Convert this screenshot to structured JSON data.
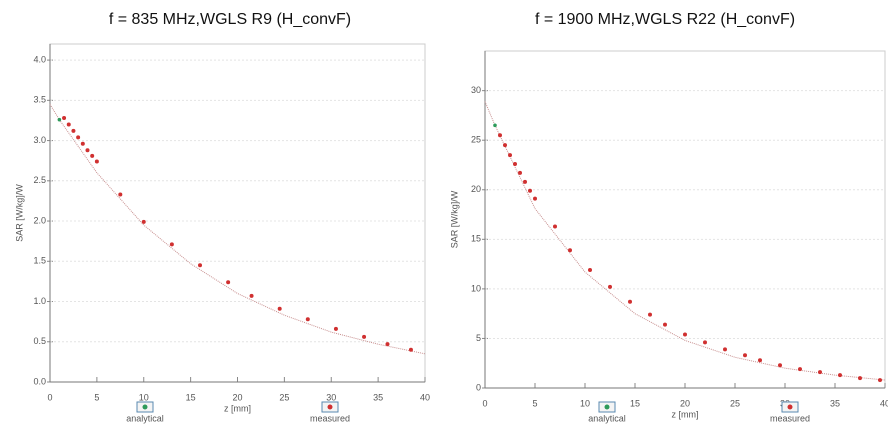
{
  "chart_data": [
    {
      "type": "line",
      "title": "f = 835 MHz,WGLS R9 (H_convF)",
      "x_label": "z [mm]",
      "y_label": "SAR [W/kg]/W",
      "xlim": [
        0,
        40
      ],
      "xticks": [
        0,
        5,
        10,
        15,
        20,
        25,
        30,
        35,
        40
      ],
      "ylim": [
        0,
        4.2
      ],
      "yticks": [
        {
          "value": 0,
          "label": "0.0"
        },
        0.5,
        {
          "value": 1,
          "label": "1.0"
        },
        1.5,
        {
          "value": 2,
          "label": "2.0"
        },
        2.5,
        {
          "value": 3,
          "label": "3.0"
        },
        3.5,
        {
          "value": 4,
          "label": "4.0"
        }
      ],
      "grid": true,
      "series": [
        {
          "name": "analytical",
          "color": "#2e9a5a",
          "style": "line",
          "x": [
            0,
            1,
            5,
            10,
            15,
            20,
            25,
            30,
            35,
            40
          ],
          "values": [
            3.45,
            3.26,
            2.6,
            1.95,
            1.47,
            1.1,
            0.83,
            0.62,
            0.47,
            0.35
          ]
        },
        {
          "name": "measured",
          "color": "#d03030",
          "style": "markers",
          "x": [
            1.5,
            2,
            2.5,
            3,
            3.5,
            4,
            4.5,
            5,
            7.5,
            10,
            13,
            16,
            19,
            21.5,
            24.5,
            27.5,
            30.5,
            33.5,
            36,
            38.5
          ],
          "values": [
            3.28,
            3.2,
            3.12,
            3.04,
            2.96,
            2.88,
            2.81,
            2.74,
            2.33,
            1.99,
            1.71,
            1.45,
            1.24,
            1.07,
            0.91,
            0.78,
            0.66,
            0.56,
            0.47,
            0.4
          ]
        }
      ]
    },
    {
      "type": "line",
      "title": "f = 1900 MHz,WGLS R22 (H_convF)",
      "x_label": "z [mm]",
      "y_label": "SAR [W/kg]/W",
      "xlim": [
        0,
        40
      ],
      "xticks": [
        0,
        5,
        10,
        15,
        20,
        25,
        30,
        35,
        40
      ],
      "ylim": [
        0,
        34
      ],
      "yticks": [
        0,
        5,
        10,
        15,
        20,
        25,
        30
      ],
      "grid": true,
      "series": [
        {
          "name": "analytical",
          "color": "#2e9a5a",
          "style": "line",
          "x": [
            0,
            1,
            5,
            10,
            15,
            20,
            25,
            30,
            35,
            40
          ],
          "values": [
            28.9,
            26.5,
            18.1,
            11.7,
            7.5,
            4.8,
            3.1,
            2,
            1.3,
            0.8
          ]
        },
        {
          "name": "measured",
          "color": "#d03030",
          "style": "markers",
          "x": [
            1.5,
            2,
            2.5,
            3,
            3.5,
            4,
            4.5,
            5,
            7,
            8.5,
            10.5,
            12.5,
            14.5,
            16.5,
            18,
            20,
            22,
            24,
            26,
            27.5,
            29.5,
            31.5,
            33.5,
            35.5,
            37.5,
            39.5
          ],
          "values": [
            25.5,
            24.5,
            23.5,
            22.6,
            21.7,
            20.8,
            19.9,
            19.1,
            16.3,
            13.9,
            11.9,
            10.2,
            8.7,
            7.4,
            6.4,
            5.4,
            4.6,
            3.9,
            3.3,
            2.8,
            2.3,
            1.9,
            1.6,
            1.3,
            1,
            0.8
          ]
        }
      ]
    }
  ]
}
